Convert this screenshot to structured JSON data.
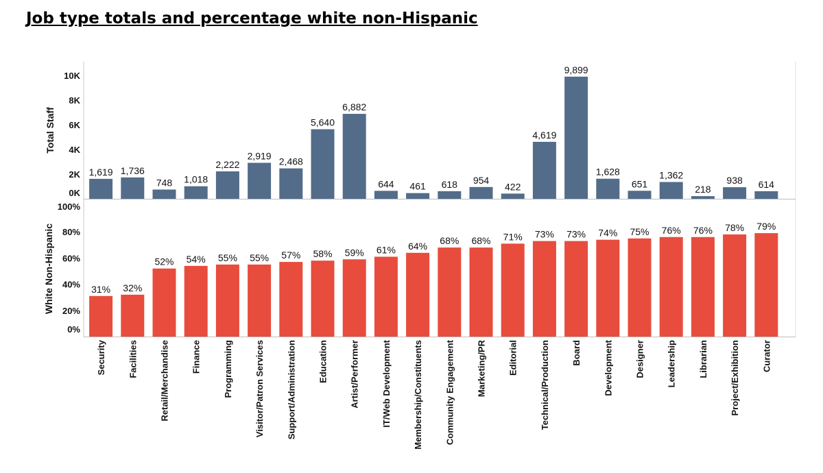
{
  "page": {
    "title": "Job type totals and percentage white non-Hispanic"
  },
  "chart_data": [
    {
      "type": "bar",
      "ylabel": "Total Staff",
      "ylim": [
        0,
        10500
      ],
      "yticks": [
        0,
        2000,
        4000,
        6000,
        8000,
        10000
      ],
      "ytick_labels": [
        "0K",
        "2K",
        "4K",
        "6K",
        "8K",
        "10K"
      ],
      "categories": [
        "Security",
        "Facilities",
        "Retail/Merchandise",
        "Finance",
        "Programming",
        "Visitor/Patron Services",
        "Support/Administration",
        "Education",
        "Artist/Performer",
        "IT/Web Development",
        "Membership/Constituents",
        "Community Engagement",
        "Marketing/PR",
        "Editorial",
        "Technical/Production",
        "Board",
        "Development",
        "Designer",
        "Leadership",
        "Librarian",
        "Project/Exhibition",
        "Curator"
      ],
      "values": [
        1619,
        1736,
        748,
        1018,
        2222,
        2919,
        2468,
        5640,
        6882,
        644,
        461,
        618,
        954,
        422,
        4619,
        9899,
        1628,
        651,
        1362,
        218,
        938,
        614
      ],
      "data_labels": [
        "1,619",
        "1,736",
        "748",
        "1,018",
        "2,222",
        "2,919",
        "2,468",
        "5,640",
        "6,882",
        "644",
        "461",
        "618",
        "954",
        "422",
        "4,619",
        "9,899",
        "1,628",
        "651",
        "1,362",
        "218",
        "938",
        "614"
      ],
      "color": "#536C8A"
    },
    {
      "type": "bar",
      "ylabel": "White Non-Hispanic",
      "ylim": [
        0,
        100
      ],
      "yticks": [
        0,
        20,
        40,
        60,
        80,
        100
      ],
      "ytick_labels": [
        "0%",
        "20%",
        "40%",
        "60%",
        "80%",
        "100%"
      ],
      "categories": [
        "Security",
        "Facilities",
        "Retail/Merchandise",
        "Finance",
        "Programming",
        "Visitor/Patron Services",
        "Support/Administration",
        "Education",
        "Artist/Performer",
        "IT/Web Development",
        "Membership/Constituents",
        "Community Engagement",
        "Marketing/PR",
        "Editorial",
        "Technical/Production",
        "Board",
        "Development",
        "Designer",
        "Leadership",
        "Librarian",
        "Project/Exhibition",
        "Curator"
      ],
      "values": [
        31,
        32,
        52,
        54,
        55,
        55,
        57,
        58,
        59,
        61,
        64,
        68,
        68,
        71,
        73,
        73,
        74,
        75,
        76,
        76,
        78,
        79
      ],
      "data_labels": [
        "31%",
        "32%",
        "52%",
        "54%",
        "55%",
        "55%",
        "57%",
        "58%",
        "59%",
        "61%",
        "64%",
        "68%",
        "68%",
        "71%",
        "73%",
        "73%",
        "74%",
        "75%",
        "76%",
        "76%",
        "78%",
        "79%"
      ],
      "color": "#E84C3D"
    }
  ]
}
